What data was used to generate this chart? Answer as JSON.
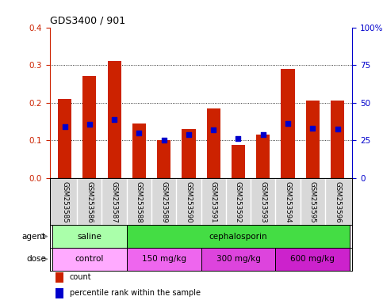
{
  "title": "GDS3400 / 901",
  "samples": [
    "GSM253585",
    "GSM253586",
    "GSM253587",
    "GSM253588",
    "GSM253589",
    "GSM253590",
    "GSM253591",
    "GSM253592",
    "GSM253593",
    "GSM253594",
    "GSM253595",
    "GSM253596"
  ],
  "count_values": [
    0.21,
    0.27,
    0.31,
    0.145,
    0.1,
    0.13,
    0.185,
    0.088,
    0.115,
    0.29,
    0.205,
    0.205
  ],
  "percentile_values": [
    0.135,
    0.142,
    0.155,
    0.12,
    0.1,
    0.115,
    0.128,
    0.105,
    0.115,
    0.145,
    0.132,
    0.13
  ],
  "left_ylim": [
    0,
    0.4
  ],
  "right_ylim": [
    0,
    100
  ],
  "left_yticks": [
    0,
    0.1,
    0.2,
    0.3,
    0.4
  ],
  "right_yticks": [
    0,
    25,
    50,
    75,
    100
  ],
  "right_yticklabels": [
    "0",
    "25",
    "50",
    "75",
    "100%"
  ],
  "bar_color": "#cc2200",
  "percentile_color": "#0000cc",
  "agent_row": {
    "groups": [
      {
        "text": "saline",
        "start": 0,
        "end": 3,
        "color": "#aaffaa"
      },
      {
        "text": "cephalosporin",
        "start": 3,
        "end": 12,
        "color": "#44dd44"
      }
    ]
  },
  "dose_row": {
    "groups": [
      {
        "text": "control",
        "start": 0,
        "end": 3,
        "color": "#ffaaff"
      },
      {
        "text": "150 mg/kg",
        "start": 3,
        "end": 6,
        "color": "#ee66ee"
      },
      {
        "text": "300 mg/kg",
        "start": 6,
        "end": 9,
        "color": "#dd44dd"
      },
      {
        "text": "600 mg/kg",
        "start": 9,
        "end": 12,
        "color": "#cc22cc"
      }
    ]
  },
  "legend_items": [
    {
      "label": "count",
      "color": "#cc2200"
    },
    {
      "label": "percentile rank within the sample",
      "color": "#0000cc"
    }
  ],
  "sample_bg": "#d8d8d8",
  "left_color": "#cc2200",
  "right_color": "#0000cc"
}
